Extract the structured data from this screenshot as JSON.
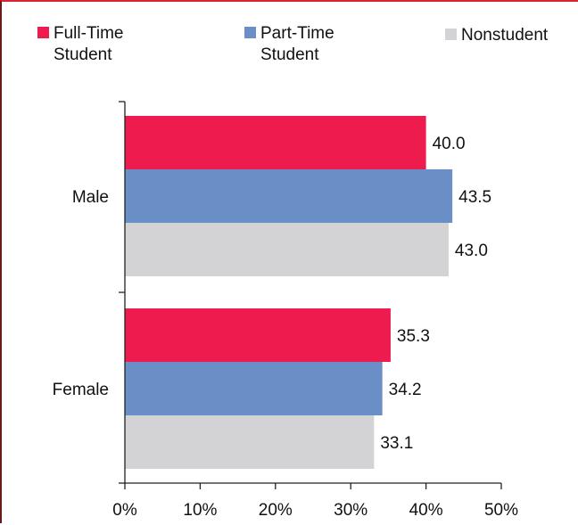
{
  "chart_data": {
    "type": "bar",
    "orientation": "horizontal",
    "categories": [
      "Male",
      "Female"
    ],
    "series": [
      {
        "name": "Full-Time Student",
        "name_lines": [
          "Full-Time",
          "Student"
        ],
        "color": "#ee1b4e",
        "values": [
          40.0,
          35.3
        ],
        "labels": [
          "40.0",
          "35.3"
        ]
      },
      {
        "name": "Part-Time Student",
        "name_lines": [
          "Part-Time",
          "Student"
        ],
        "color": "#6a8fc7",
        "values": [
          43.5,
          34.2
        ],
        "labels": [
          "43.5",
          "34.2"
        ]
      },
      {
        "name": "Nonstudent",
        "name_lines": [
          "Nonstudent"
        ],
        "color": "#d3d3d5",
        "values": [
          43.0,
          33.1
        ],
        "labels": [
          "43.0",
          "33.1"
        ]
      }
    ],
    "xlim": [
      0,
      50
    ],
    "xticks": [
      0,
      10,
      20,
      30,
      40,
      50
    ],
    "xtick_labels": [
      "0%",
      "10%",
      "20%",
      "30%",
      "40%",
      "50%"
    ],
    "legend_position": "top",
    "grid": false
  }
}
